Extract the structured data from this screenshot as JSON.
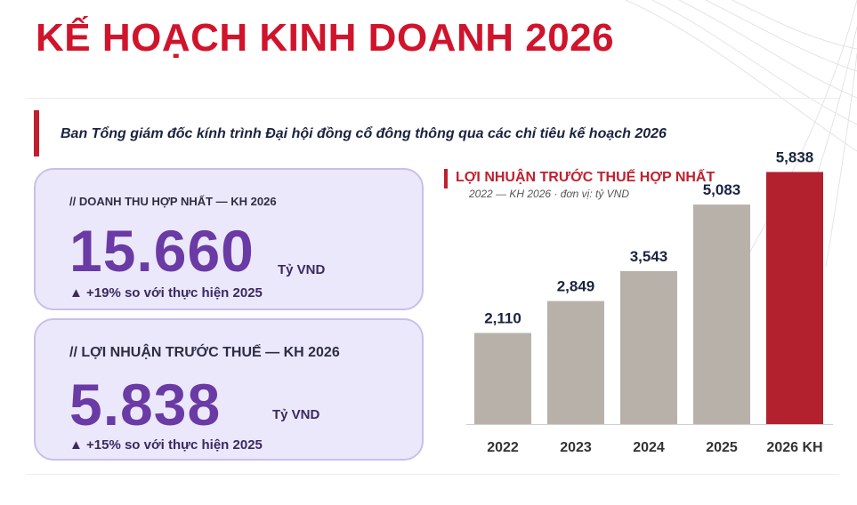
{
  "header": {
    "title": "KẾ HOẠCH KINH DOANH 2026",
    "subtitle": "Ban Tổng giám đốc kính trình Đại hội đồng cổ đông thông qua các chỉ tiêu kế hoạch 2026"
  },
  "kpis": {
    "revenue": {
      "label": "// DOANH THU HỢP NHẤT — KH 2026",
      "value": "15.660",
      "unit": "Tỷ VND",
      "change": "▲ +19% so với thực hiện 2025"
    },
    "profit": {
      "label": "// LỢI NHUẬN TRƯỚC THUẾ — KH 2026",
      "value": "5.838",
      "unit": "Tỷ VND",
      "change": "▲ +15% so với thực hiện 2025"
    }
  },
  "colors": {
    "accent": "#c0202e",
    "title": "#d0142c",
    "bar": "#b8b1aa",
    "bar_highlight": "#b3212f",
    "kpi_value": "#6a3aa5"
  },
  "chart_data": {
    "type": "bar",
    "title": "LỢI NHUẬN TRƯỚC THUẾ HỢP NHẤT",
    "subtitle": "2022 — KH 2026 · đơn vị: tỷ VND",
    "categories": [
      "2022",
      "2023",
      "2024",
      "2025",
      "2026 KH"
    ],
    "values": [
      2110,
      2849,
      3543,
      5083,
      5838
    ],
    "data_labels": [
      "2,110",
      "2,849",
      "3,543",
      "5,083",
      "5,838"
    ],
    "highlight_index": 4,
    "ylim": [
      0,
      7000
    ],
    "grid": false,
    "legend": "none"
  }
}
